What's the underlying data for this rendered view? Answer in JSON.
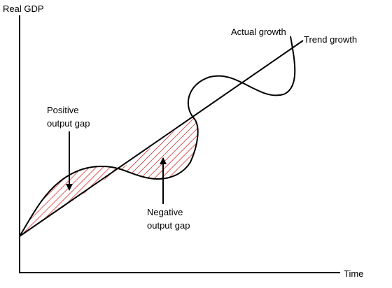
{
  "axes": {
    "y_label": "Real GDP",
    "x_label": "Time"
  },
  "curves": {
    "actual_label": "Actual growth",
    "trend_label": "Trend growth"
  },
  "annotations": {
    "positive_line1": "Positive",
    "positive_line2": "output gap",
    "negative_line1": "Negative",
    "negative_line2": "output gap"
  },
  "colors": {
    "hatch": "#d40000",
    "line": "#000000"
  }
}
